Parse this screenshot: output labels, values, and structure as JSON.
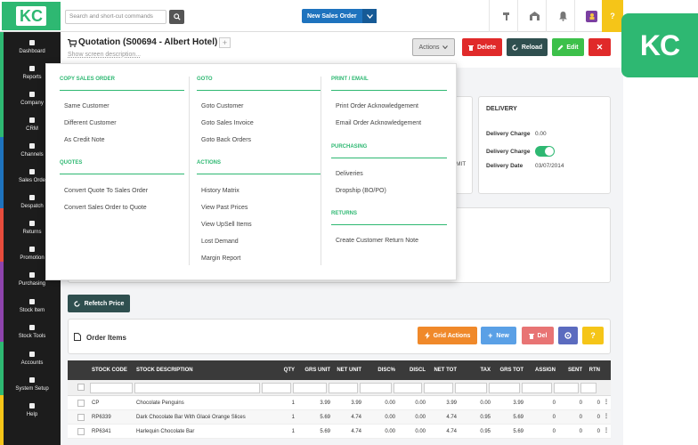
{
  "brand": {
    "logo_text": "KC",
    "accent": "#2eb872"
  },
  "topbar": {
    "search_placeholder": "Search and short-cut commands",
    "new_sales_order": "New Sales Order",
    "help": "?"
  },
  "sidebar": {
    "items": [
      {
        "label": "Dashboard",
        "icon": "dashboard-icon"
      },
      {
        "label": "Reports",
        "icon": "reports-icon"
      },
      {
        "label": "Company",
        "icon": "company-icon"
      },
      {
        "label": "CRM",
        "icon": "crm-icon"
      },
      {
        "label": "Channels",
        "icon": "channels-icon"
      },
      {
        "label": "Sales Orde",
        "icon": "sales-orders-icon"
      },
      {
        "label": "Despatch",
        "icon": "despatch-icon"
      },
      {
        "label": "Returns",
        "icon": "returns-icon"
      },
      {
        "label": "Promotion",
        "icon": "promotions-icon"
      },
      {
        "label": "Purchasing",
        "icon": "purchasing-icon"
      },
      {
        "label": "Stock Item",
        "icon": "stock-item-icon"
      },
      {
        "label": "Stock Tools",
        "icon": "stock-tools-icon"
      },
      {
        "label": "Accounts",
        "icon": "accounts-icon"
      },
      {
        "label": "System Setup",
        "icon": "system-setup-icon"
      },
      {
        "label": "Help",
        "icon": "help-icon"
      }
    ]
  },
  "header": {
    "title": "Quotation (S00694 - Albert Hotel)",
    "description_placeholder": "Show screen description...",
    "actions_label": "Actions",
    "delete_label": "Delete",
    "reload_label": "Reload",
    "edit_label": "Edit",
    "close_label": "✕"
  },
  "actions_menu": {
    "columns": [
      {
        "sections": [
          {
            "heading": "COPY SALES ORDER",
            "items": [
              "Same Customer",
              "Different Customer",
              "As Credit Note"
            ]
          },
          {
            "heading": "QUOTES",
            "items": [
              "Convert Quote To Sales Order",
              "Convert Sales Order to Quote"
            ]
          }
        ]
      },
      {
        "sections": [
          {
            "heading": "GOTO",
            "items": [
              "Goto Customer",
              "Goto Sales Invoice",
              "Goto Back Orders"
            ]
          },
          {
            "heading": "ACTIONS",
            "items": [
              "History Matrix",
              "View Past Prices",
              "View UpSell Items",
              "Lost Demand",
              "Margin Report"
            ]
          }
        ]
      },
      {
        "sections": [
          {
            "heading": "PRINT / EMAIL",
            "items": [
              "Print Order Acknowledgement",
              "Email Order Acknowledgement"
            ]
          },
          {
            "heading": "PURCHASING",
            "items": [
              "Deliveries",
              "Dropship (BO/PO)"
            ]
          },
          {
            "heading": "RETURNS",
            "items": [
              "Create Customer Return Note"
            ]
          }
        ]
      }
    ]
  },
  "delivery": {
    "heading": "DELIVERY",
    "charge_label": "Delivery Charge",
    "charge_value": "0.00",
    "toggle_label": "Delivery Charge",
    "toggle_on": true,
    "date_label": "Delivery Date",
    "date_value": "03/07/2014",
    "partial_text": "MIT"
  },
  "refetch_label": "Refetch Price",
  "order_items": {
    "title": "Order Items",
    "grid_actions": "Grid Actions",
    "new_label": "New",
    "del_label": "Del",
    "help": "?"
  },
  "table": {
    "columns": [
      "STOCK CODE",
      "STOCK DESCRIPTION",
      "QTY",
      "GRS UNIT",
      "NET UNIT",
      "DISC%",
      "DISCL",
      "NET TOT",
      "TAX",
      "GRS TOT",
      "ASSIGN",
      "SENT",
      "RTN"
    ],
    "rows": [
      [
        "CP",
        "Chocolate Penguins",
        "1",
        "3.99",
        "3.99",
        "0.00",
        "0.00",
        "3.99",
        "0.00",
        "3.99",
        "0",
        "0",
        "0"
      ],
      [
        "RP6339",
        "Dark Chocolate Bar With Glacé Orange Slices",
        "1",
        "5.69",
        "4.74",
        "0.00",
        "0.00",
        "4.74",
        "0.95",
        "5.69",
        "0",
        "0",
        "0"
      ],
      [
        "RP6341",
        "Harlequin Chocolate Bar",
        "1",
        "5.69",
        "4.74",
        "0.00",
        "0.00",
        "4.74",
        "0.95",
        "5.69",
        "0",
        "0",
        "0"
      ]
    ]
  },
  "side_logo": "KC"
}
